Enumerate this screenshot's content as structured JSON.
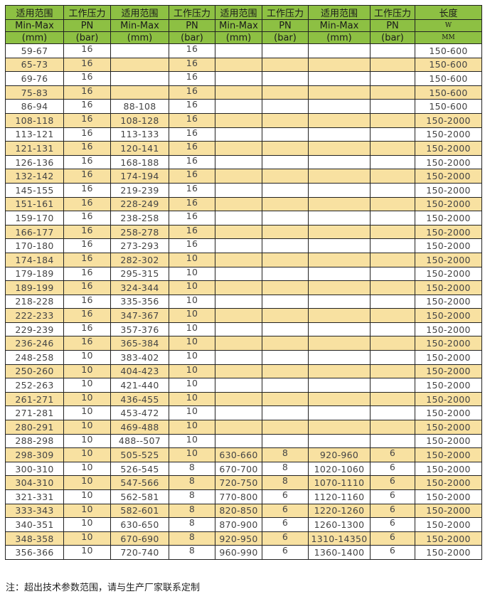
{
  "colors": {
    "header": "#8dc043",
    "alt_row": "#f8e1a1"
  },
  "header": {
    "row1": [
      "适用范围",
      "工作压力",
      "适用范围",
      "工作压力",
      "适用范围",
      "工作压力",
      "适用范围",
      "工作压力",
      "长度"
    ],
    "row2": [
      "Min-Max",
      "PN",
      "Min-Max",
      "PN",
      "Min-Max",
      "PN",
      "Min-Max",
      "PN",
      "W"
    ],
    "row3": [
      "(mm)",
      "(bar)",
      "(mm)",
      "(bar)",
      "(mm)",
      "(bar)",
      "(mm)",
      "(bar)",
      "MM"
    ]
  },
  "rows": [
    [
      "59-67",
      "16",
      "",
      "16",
      "",
      "",
      "",
      "",
      "150-600"
    ],
    [
      "65-73",
      "16",
      "",
      "16",
      "",
      "",
      "",
      "",
      "150-600"
    ],
    [
      "69-76",
      "16",
      "",
      "16",
      "",
      "",
      "",
      "",
      "150-600"
    ],
    [
      "75-83",
      "16",
      "",
      "16",
      "",
      "",
      "",
      "",
      "150-600"
    ],
    [
      "86-94",
      "16",
      "88-108",
      "16",
      "",
      "",
      "",
      "",
      "150-600"
    ],
    [
      "108-118",
      "16",
      "108-128",
      "16",
      "",
      "",
      "",
      "",
      "150-2000"
    ],
    [
      "113-121",
      "16",
      "113-133",
      "16",
      "",
      "",
      "",
      "",
      "150-2000"
    ],
    [
      "121-131",
      "16",
      "120-141",
      "16",
      "",
      "",
      "",
      "",
      "150-2000"
    ],
    [
      "126-136",
      "16",
      "168-188",
      "16",
      "",
      "",
      "",
      "",
      "150-2000"
    ],
    [
      "132-142",
      "16",
      "174-194",
      "16",
      "",
      "",
      "",
      "",
      "150-2000"
    ],
    [
      "145-155",
      "16",
      "219-239",
      "16",
      "",
      "",
      "",
      "",
      "150-2000"
    ],
    [
      "151-161",
      "16",
      "228-249",
      "16",
      "",
      "",
      "",
      "",
      "150-2000"
    ],
    [
      "159-170",
      "16",
      "238-258",
      "16",
      "",
      "",
      "",
      "",
      "150-2000"
    ],
    [
      "166-177",
      "16",
      "258-278",
      "16",
      "",
      "",
      "",
      "",
      "150-2000"
    ],
    [
      "170-180",
      "16",
      "273-293",
      "16",
      "",
      "",
      "",
      "",
      "150-2000"
    ],
    [
      "174-184",
      "16",
      "282-302",
      "10",
      "",
      "",
      "",
      "",
      "150-2000"
    ],
    [
      "179-189",
      "16",
      "295-315",
      "10",
      "",
      "",
      "",
      "",
      "150-2000"
    ],
    [
      "189-199",
      "16",
      "324-344",
      "10",
      "",
      "",
      "",
      "",
      "150-2000"
    ],
    [
      "218-228",
      "16",
      "335-356",
      "10",
      "",
      "",
      "",
      "",
      "150-2000"
    ],
    [
      "222-233",
      "16",
      "347-367",
      "10",
      "",
      "",
      "",
      "",
      "150-2000"
    ],
    [
      "229-239",
      "16",
      "357-376",
      "10",
      "",
      "",
      "",
      "",
      "150-2000"
    ],
    [
      "236-246",
      "16",
      "365-384",
      "10",
      "",
      "",
      "",
      "",
      "150-2000"
    ],
    [
      "248-258",
      "10",
      "383-402",
      "10",
      "",
      "",
      "",
      "",
      "150-2000"
    ],
    [
      "250-260",
      "10",
      "404-423",
      "10",
      "",
      "",
      "",
      "",
      "150-2000"
    ],
    [
      "252-263",
      "10",
      "421-440",
      "10",
      "",
      "",
      "",
      "",
      "150-2000"
    ],
    [
      "261-271",
      "10",
      "436-455",
      "10",
      "",
      "",
      "",
      "",
      "150-2000"
    ],
    [
      "271-281",
      "10",
      "453-472",
      "10",
      "",
      "",
      "",
      "",
      "150-2000"
    ],
    [
      "280-291",
      "10",
      "469-488",
      "10",
      "",
      "",
      "",
      "",
      "150-2000"
    ],
    [
      "288-298",
      "10",
      "488--507",
      "10",
      "",
      "",
      "",
      "",
      "150-2000"
    ],
    [
      "298-309",
      "10",
      "505-525",
      "10",
      "630-660",
      "8",
      "920-960",
      "6",
      "150-2000"
    ],
    [
      "300-310",
      "10",
      "526-545",
      "8",
      "670-700",
      "8",
      "1020-1060",
      "6",
      "150-2000"
    ],
    [
      "304-310",
      "10",
      "547-566",
      "8",
      "720-750",
      "8",
      "1070-1110",
      "6",
      "150-2000"
    ],
    [
      "321-331",
      "10",
      "562-581",
      "8",
      "770-800",
      "6",
      "1120-1160",
      "6",
      "150-2000"
    ],
    [
      "333-343",
      "10",
      "582-601",
      "8",
      "820-850",
      "6",
      "1220-1260",
      "6",
      "150-2000"
    ],
    [
      "340-351",
      "10",
      "630-650",
      "8",
      "870-900",
      "6",
      "1260-1300",
      "6",
      "150-2000"
    ],
    [
      "348-358",
      "10",
      "670-690",
      "8",
      "920-950",
      "6",
      "1310-14350",
      "6",
      "150-2000"
    ],
    [
      "356-366",
      "10",
      "720-740",
      "8",
      "960-990",
      "6",
      "1360-1400",
      "6",
      "150-2000"
    ]
  ],
  "note": "注：超出技术参数范围，请与生产厂家联系定制"
}
